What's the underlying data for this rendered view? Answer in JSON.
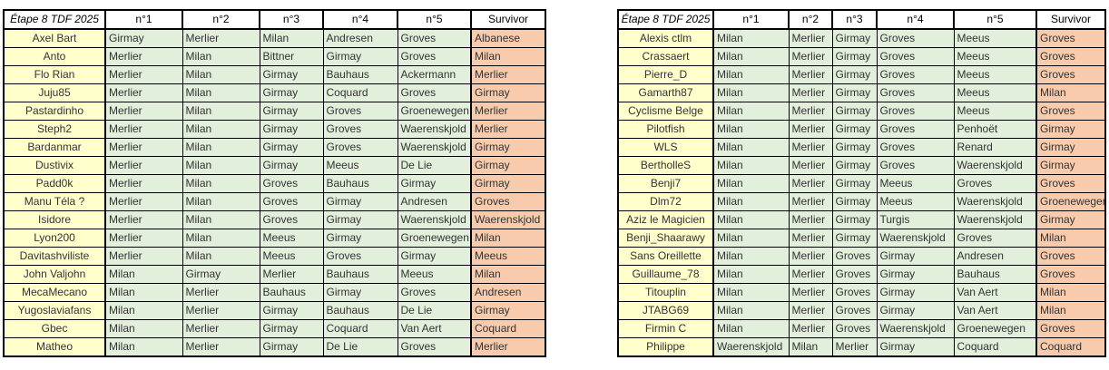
{
  "colors": {
    "name_bg": "#ffffcc",
    "pick_bg": "#e2efda",
    "survivor_bg": "#f8cbad",
    "border": "#000000",
    "text": "#333333"
  },
  "tables": [
    {
      "title": "Étape 8 TDF 2025",
      "columns": [
        "n°1",
        "n°2",
        "n°3",
        "n°4",
        "n°5",
        "Survivor"
      ],
      "rows": [
        {
          "name": "Axel Bart",
          "picks": [
            "Girmay",
            "Merlier",
            "Milan",
            "Andresen",
            "Groves"
          ],
          "survivor": "Albanese"
        },
        {
          "name": "Anto",
          "picks": [
            "Merlier",
            "Milan",
            "Bittner",
            "Girmay",
            "Groves"
          ],
          "survivor": "Milan"
        },
        {
          "name": "Flo Rian",
          "picks": [
            "Merlier",
            "Milan",
            "Girmay",
            "Bauhaus",
            "Ackermann"
          ],
          "survivor": "Merlier"
        },
        {
          "name": "Juju85",
          "picks": [
            "Merlier",
            "Milan",
            "Girmay",
            "Coquard",
            "Groves"
          ],
          "survivor": "Girmay"
        },
        {
          "name": "Pastardinho",
          "picks": [
            "Merlier",
            "Milan",
            "Girmay",
            "Groves",
            "Groenewegen"
          ],
          "survivor": "Merlier"
        },
        {
          "name": "Steph2",
          "picks": [
            "Merlier",
            "Milan",
            "Girmay",
            "Groves",
            "Waerenskjold"
          ],
          "survivor": "Merlier"
        },
        {
          "name": "Bardanmar",
          "picks": [
            "Merlier",
            "Milan",
            "Girmay",
            "Groves",
            "Waerenskjold"
          ],
          "survivor": "Girmay"
        },
        {
          "name": "Dustivix",
          "picks": [
            "Merlier",
            "Milan",
            "Girmay",
            "Meeus",
            "De Lie"
          ],
          "survivor": "Girmay"
        },
        {
          "name": "Padd0k",
          "picks": [
            "Merlier",
            "Milan",
            "Groves",
            "Bauhaus",
            "Girmay"
          ],
          "survivor": "Girmay"
        },
        {
          "name": "Manu Téla ?",
          "picks": [
            "Merlier",
            "Milan",
            "Groves",
            "Girmay",
            "Andresen"
          ],
          "survivor": "Groves"
        },
        {
          "name": "Isidore",
          "picks": [
            "Merlier",
            "Milan",
            "Groves",
            "Girmay",
            "Waerenskjold"
          ],
          "survivor": "Waerenskjold"
        },
        {
          "name": "Lyon200",
          "picks": [
            "Merlier",
            "Milan",
            "Meeus",
            "Girmay",
            "Groenewegen"
          ],
          "survivor": "Milan"
        },
        {
          "name": "Davitashviliste",
          "picks": [
            "Merlier",
            "Milan",
            "Meeus",
            "Groves",
            "Girmay"
          ],
          "survivor": "Meeus"
        },
        {
          "name": "John Valjohn",
          "picks": [
            "Milan",
            "Girmay",
            "Merlier",
            "Bauhaus",
            "Meeus"
          ],
          "survivor": "Milan"
        },
        {
          "name": "MecaMecano",
          "picks": [
            "Milan",
            "Merlier",
            "Bauhaus",
            "Girmay",
            "Groves"
          ],
          "survivor": "Andresen"
        },
        {
          "name": "Yugoslaviafans",
          "picks": [
            "Milan",
            "Merlier",
            "Girmay",
            "Bauhaus",
            "De Lie"
          ],
          "survivor": "Girmay"
        },
        {
          "name": "Gbec",
          "picks": [
            "Milan",
            "Merlier",
            "Girmay",
            "Coquard",
            "Van Aert"
          ],
          "survivor": "Coquard"
        },
        {
          "name": "Matheo",
          "picks": [
            "Milan",
            "Merlier",
            "Girmay",
            "De Lie",
            "Groves"
          ],
          "survivor": "Merlier"
        }
      ]
    },
    {
      "title": "Étape 8 TDF 2025",
      "columns": [
        "n°1",
        "n°2",
        "n°3",
        "n°4",
        "n°5",
        "Survivor"
      ],
      "rows": [
        {
          "name": "Alexis ctlm",
          "picks": [
            "Milan",
            "Merlier",
            "Girmay",
            "Groves",
            "Meeus"
          ],
          "survivor": "Groves"
        },
        {
          "name": "Crassaert",
          "picks": [
            "Milan",
            "Merlier",
            "Girmay",
            "Groves",
            "Meeus"
          ],
          "survivor": "Groves"
        },
        {
          "name": "Pierre_D",
          "picks": [
            "Milan",
            "Merlier",
            "Girmay",
            "Groves",
            "Meeus"
          ],
          "survivor": "Groves"
        },
        {
          "name": "Gamarth87",
          "picks": [
            "Milan",
            "Merlier",
            "Girmay",
            "Groves",
            "Meeus"
          ],
          "survivor": "Milan"
        },
        {
          "name": "Cyclisme Belge",
          "picks": [
            "Milan",
            "Merlier",
            "Girmay",
            "Groves",
            "Meeus"
          ],
          "survivor": "Groves"
        },
        {
          "name": "Pilotfish",
          "picks": [
            "Milan",
            "Merlier",
            "Girmay",
            "Groves",
            "Penhoët"
          ],
          "survivor": "Girmay"
        },
        {
          "name": "WLS",
          "picks": [
            "Milan",
            "Merlier",
            "Girmay",
            "Groves",
            "Renard"
          ],
          "survivor": "Girmay"
        },
        {
          "name": "BertholleS",
          "picks": [
            "Milan",
            "Merlier",
            "Girmay",
            "Groves",
            "Waerenskjold"
          ],
          "survivor": "Girmay"
        },
        {
          "name": "Benji7",
          "picks": [
            "Milan",
            "Merlier",
            "Girmay",
            "Meeus",
            "Groves"
          ],
          "survivor": "Groves"
        },
        {
          "name": "Dlm72",
          "picks": [
            "Milan",
            "Merlier",
            "Girmay",
            "Meeus",
            "Waerenskjold"
          ],
          "survivor": "Groenewegen"
        },
        {
          "name": "Aziz le Magicien",
          "picks": [
            "Milan",
            "Merlier",
            "Girmay",
            "Turgis",
            "Waerenskjold"
          ],
          "survivor": "Girmay"
        },
        {
          "name": "Benji_Shaarawy",
          "picks": [
            "Milan",
            "Merlier",
            "Girmay",
            "Waerenskjold",
            "Groves"
          ],
          "survivor": "Milan"
        },
        {
          "name": "Sans Oreillette",
          "picks": [
            "Milan",
            "Merlier",
            "Groves",
            "Girmay",
            "Andresen"
          ],
          "survivor": "Groves"
        },
        {
          "name": "Guillaume_78",
          "picks": [
            "Milan",
            "Merlier",
            "Groves",
            "Girmay",
            "Bauhaus"
          ],
          "survivor": "Groves"
        },
        {
          "name": "Titouplin",
          "picks": [
            "Milan",
            "Merlier",
            "Groves",
            "Girmay",
            "Van Aert"
          ],
          "survivor": "Milan"
        },
        {
          "name": "JTABG69",
          "picks": [
            "Milan",
            "Merlier",
            "Groves",
            "Girmay",
            "Van Aert"
          ],
          "survivor": "Milan"
        },
        {
          "name": "Firmin C",
          "picks": [
            "Milan",
            "Merlier",
            "Groves",
            "Waerenskjold",
            "Groenewegen"
          ],
          "survivor": "Groves"
        },
        {
          "name": "Philippe",
          "picks": [
            "Waerenskjold",
            "Milan",
            "Merlier",
            "Girmay",
            "Coquard"
          ],
          "survivor": "Coquard"
        }
      ]
    }
  ]
}
